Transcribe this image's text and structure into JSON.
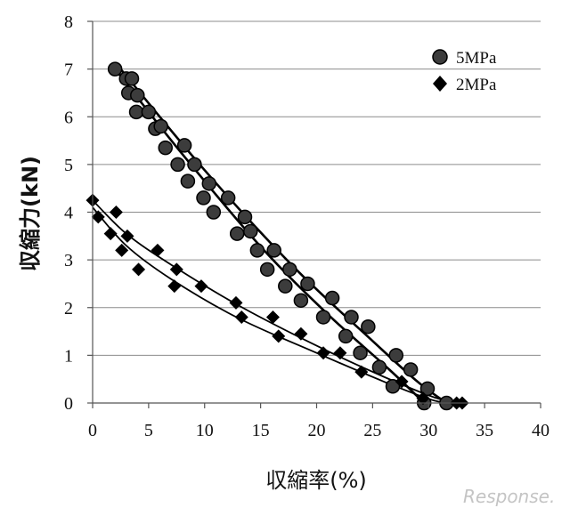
{
  "chart_data": {
    "type": "scatter",
    "title": "",
    "xlabel": "収縮率(%)",
    "ylabel": "収縮力(kN)",
    "xlim": [
      0,
      40
    ],
    "ylim": [
      0,
      8
    ],
    "xticks": [
      "0",
      "5",
      "10",
      "15",
      "20",
      "25",
      "30",
      "35",
      "40"
    ],
    "yticks": [
      "0",
      "1",
      "2",
      "3",
      "4",
      "5",
      "6",
      "7",
      "8"
    ],
    "grid": "horizontal",
    "legend_position": "top-right",
    "series": [
      {
        "name": "5MPa",
        "marker": "circle",
        "color": "#3c3c3c",
        "points": [
          [
            2,
            7.0
          ],
          [
            3,
            6.8
          ],
          [
            3.5,
            6.8
          ],
          [
            3.2,
            6.5
          ],
          [
            4,
            6.45
          ],
          [
            3.9,
            6.1
          ],
          [
            5,
            6.1
          ],
          [
            5.6,
            5.75
          ],
          [
            6.1,
            5.8
          ],
          [
            6.5,
            5.35
          ],
          [
            7.6,
            5.0
          ],
          [
            8.2,
            5.4
          ],
          [
            8.5,
            4.65
          ],
          [
            9.1,
            5.0
          ],
          [
            9.9,
            4.3
          ],
          [
            10.4,
            4.6
          ],
          [
            10.8,
            4.0
          ],
          [
            12.1,
            4.3
          ],
          [
            12.9,
            3.55
          ],
          [
            13.6,
            3.9
          ],
          [
            14.1,
            3.6
          ],
          [
            14.7,
            3.2
          ],
          [
            15.6,
            2.8
          ],
          [
            16.2,
            3.2
          ],
          [
            17.2,
            2.45
          ],
          [
            17.6,
            2.8
          ],
          [
            18.6,
            2.15
          ],
          [
            19.2,
            2.5
          ],
          [
            20.6,
            1.8
          ],
          [
            21.4,
            2.2
          ],
          [
            22.6,
            1.4
          ],
          [
            23.1,
            1.8
          ],
          [
            23.9,
            1.05
          ],
          [
            24.6,
            1.6
          ],
          [
            25.6,
            0.75
          ],
          [
            26.8,
            0.35
          ],
          [
            27.1,
            1.0
          ],
          [
            28.4,
            0.7
          ],
          [
            29.6,
            0.0
          ],
          [
            29.9,
            0.3
          ],
          [
            31.6,
            0.0
          ]
        ],
        "fits": [
          [
            [
              2,
              7.0
            ],
            [
              8,
              5.22
            ],
            [
              15,
              3.28
            ],
            [
              21,
              1.86
            ],
            [
              26.5,
              0.7
            ],
            [
              29.6,
              0.0
            ]
          ],
          [
            [
              2.5,
              7.0
            ],
            [
              10,
              4.88
            ],
            [
              18,
              2.84
            ],
            [
              25,
              1.3
            ],
            [
              29,
              0.45
            ],
            [
              31.6,
              0.0
            ]
          ]
        ]
      },
      {
        "name": "2MPa",
        "marker": "diamond",
        "color": "#000000",
        "points": [
          [
            0,
            4.25
          ],
          [
            0.5,
            3.9
          ],
          [
            1.6,
            3.55
          ],
          [
            2.1,
            4.0
          ],
          [
            2.6,
            3.2
          ],
          [
            3.1,
            3.5
          ],
          [
            4.1,
            2.8
          ],
          [
            5.8,
            3.2
          ],
          [
            7.3,
            2.45
          ],
          [
            7.5,
            2.8
          ],
          [
            9.7,
            2.45
          ],
          [
            12.8,
            2.1
          ],
          [
            13.3,
            1.8
          ],
          [
            16.1,
            1.8
          ],
          [
            16.6,
            1.4
          ],
          [
            18.6,
            1.45
          ],
          [
            20.6,
            1.05
          ],
          [
            22.1,
            1.05
          ],
          [
            24,
            0.65
          ],
          [
            27.6,
            0.45
          ],
          [
            29.5,
            0.1
          ],
          [
            32.5,
            0.0
          ],
          [
            33,
            0.0
          ]
        ],
        "fits": [
          [
            [
              0,
              4.1
            ],
            [
              3,
              3.3
            ],
            [
              7,
              2.6
            ],
            [
              13,
              1.78
            ],
            [
              20,
              1.05
            ],
            [
              26,
              0.45
            ],
            [
              30.5,
              0.05
            ],
            [
              32.8,
              0.0
            ]
          ],
          [
            [
              0,
              4.25
            ],
            [
              3,
              3.55
            ],
            [
              7,
              2.9
            ],
            [
              13,
              2.05
            ],
            [
              20,
              1.2
            ],
            [
              26,
              0.55
            ],
            [
              30.5,
              0.12
            ],
            [
              32.8,
              0.0
            ]
          ]
        ]
      }
    ]
  },
  "watermark": "Response."
}
